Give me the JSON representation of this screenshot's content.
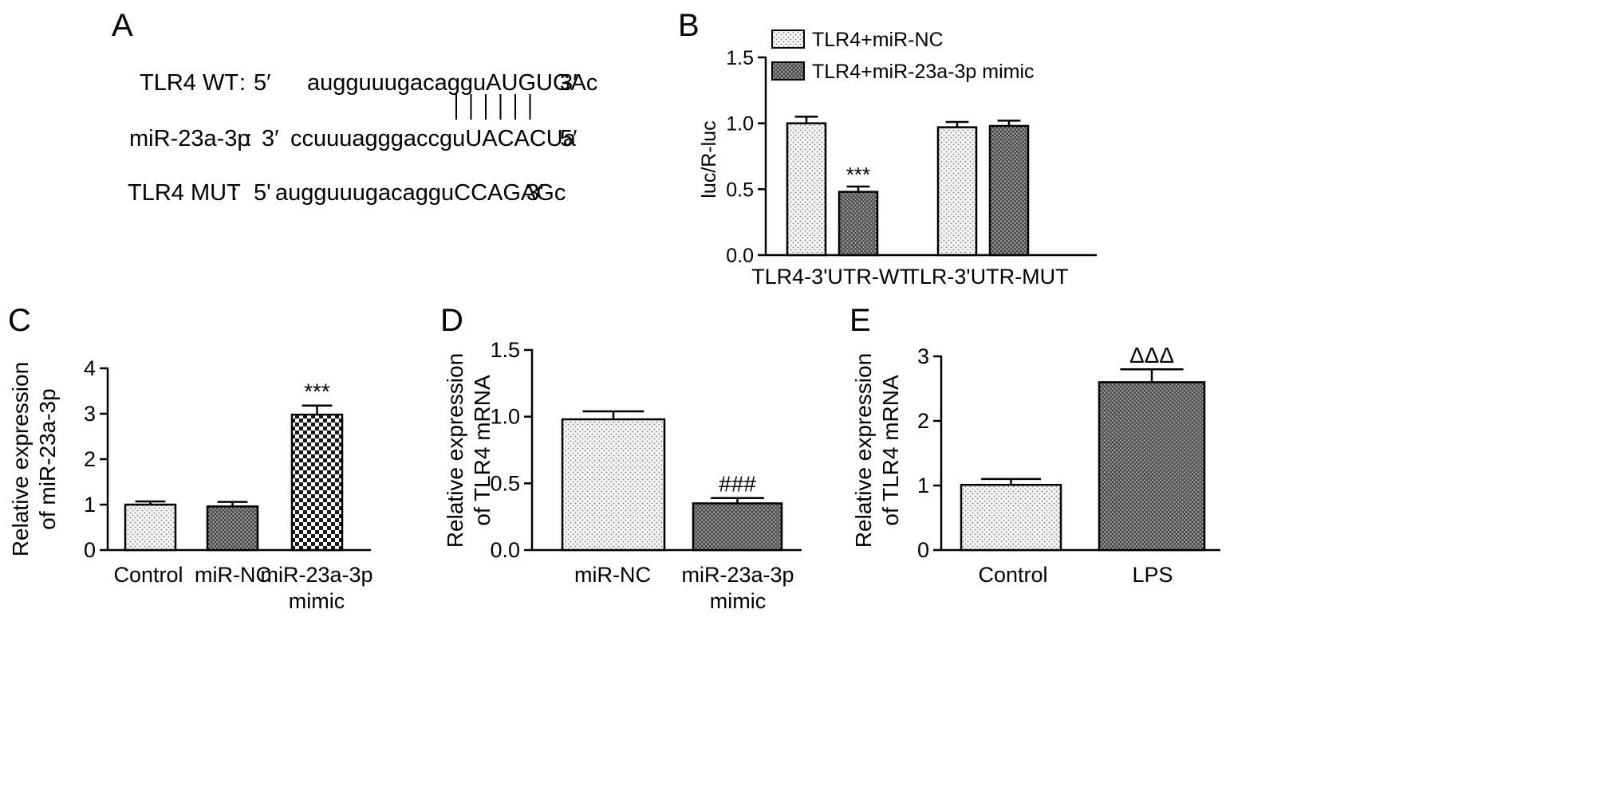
{
  "panels": {
    "A": {
      "letter": "A",
      "rows": [
        {
          "label": "TLR4 WT",
          "sep": ":",
          "prime5": "5′",
          "seq": "augguuugacagguAUGUGAc",
          "prime3": "3′"
        },
        {
          "label": "miR-23a-3p",
          "sep": ":",
          "prime5": "3′",
          "seq": "ccuuuagggaccguUACACUa",
          "prime3": "5′"
        },
        {
          "label": "TLR4 MUT",
          "sep": ":",
          "prime5": "5'",
          "seq": "augguuugacagguCCAGAGc",
          "prime3": "3'"
        }
      ],
      "pairing_lines": 6
    },
    "B": {
      "letter": "B"
    },
    "C": {
      "letter": "C"
    },
    "D": {
      "letter": "D"
    },
    "E": {
      "letter": "E"
    }
  },
  "chart_data": [
    {
      "panel": "B",
      "type": "bar",
      "ylabel": "luc/R-luc",
      "ylim": [
        0,
        1.5
      ],
      "yticks": [
        "0.0",
        "0.5",
        "1.0",
        "1.5"
      ],
      "yticks_values": [
        0,
        0.5,
        1.0,
        1.5
      ],
      "categories": [
        "TLR4-3'UTR-WT",
        "TLR-3'UTR-MUT"
      ],
      "series": [
        {
          "name": "TLR4+miR-NC",
          "pattern": "dots",
          "values": [
            1.0,
            0.97
          ],
          "errors": [
            0.05,
            0.04
          ]
        },
        {
          "name": "TLR4+miR-23a-3p mimic",
          "pattern": "crosshatch",
          "values": [
            0.48,
            0.98
          ],
          "errors": [
            0.04,
            0.04
          ]
        }
      ],
      "annotations": [
        {
          "category": 0,
          "series": 1,
          "text": "***"
        }
      ],
      "legend": "top-left"
    },
    {
      "panel": "C",
      "type": "bar",
      "ylabel": [
        "Relative expression",
        "of miR-23a-3p"
      ],
      "ylim": [
        0,
        4
      ],
      "yticks": [
        "0",
        "1",
        "2",
        "3",
        "4"
      ],
      "yticks_values": [
        0,
        1,
        2,
        3,
        4
      ],
      "categories": [
        [
          "Control"
        ],
        [
          "miR-NC"
        ],
        [
          "miR-23a-3p",
          "mimic"
        ]
      ],
      "values": [
        1.0,
        0.96,
        2.98
      ],
      "errors": [
        0.07,
        0.1,
        0.2
      ],
      "patterns": [
        "dots",
        "crosshatch",
        "checker"
      ],
      "annotations": [
        {
          "index": 2,
          "text": "***"
        }
      ]
    },
    {
      "panel": "D",
      "type": "bar",
      "ylabel": [
        "Relative expression",
        "of TLR4 mRNA"
      ],
      "ylim": [
        0,
        1.5
      ],
      "yticks": [
        "0.0",
        "0.5",
        "1.0",
        "1.5"
      ],
      "yticks_values": [
        0,
        0.5,
        1.0,
        1.5
      ],
      "categories": [
        [
          "miR-NC"
        ],
        [
          "miR-23a-3p",
          "mimic"
        ]
      ],
      "values": [
        0.98,
        0.35
      ],
      "errors": [
        0.06,
        0.04
      ],
      "patterns": [
        "dots",
        "crosshatch"
      ],
      "annotations": [
        {
          "index": 1,
          "text": "###"
        }
      ]
    },
    {
      "panel": "E",
      "type": "bar",
      "ylabel": [
        "Relative expression",
        "of TLR4 mRNA"
      ],
      "ylim": [
        0,
        3
      ],
      "yticks": [
        "0",
        "1",
        "2",
        "3"
      ],
      "yticks_values": [
        0,
        1,
        2,
        3
      ],
      "categories": [
        [
          "Control"
        ],
        [
          "LPS"
        ]
      ],
      "values": [
        1.01,
        2.6
      ],
      "errors": [
        0.09,
        0.2
      ],
      "patterns": [
        "dots",
        "crosshatch"
      ],
      "annotations": [
        {
          "index": 1,
          "text": "ΔΔΔ"
        }
      ]
    }
  ]
}
